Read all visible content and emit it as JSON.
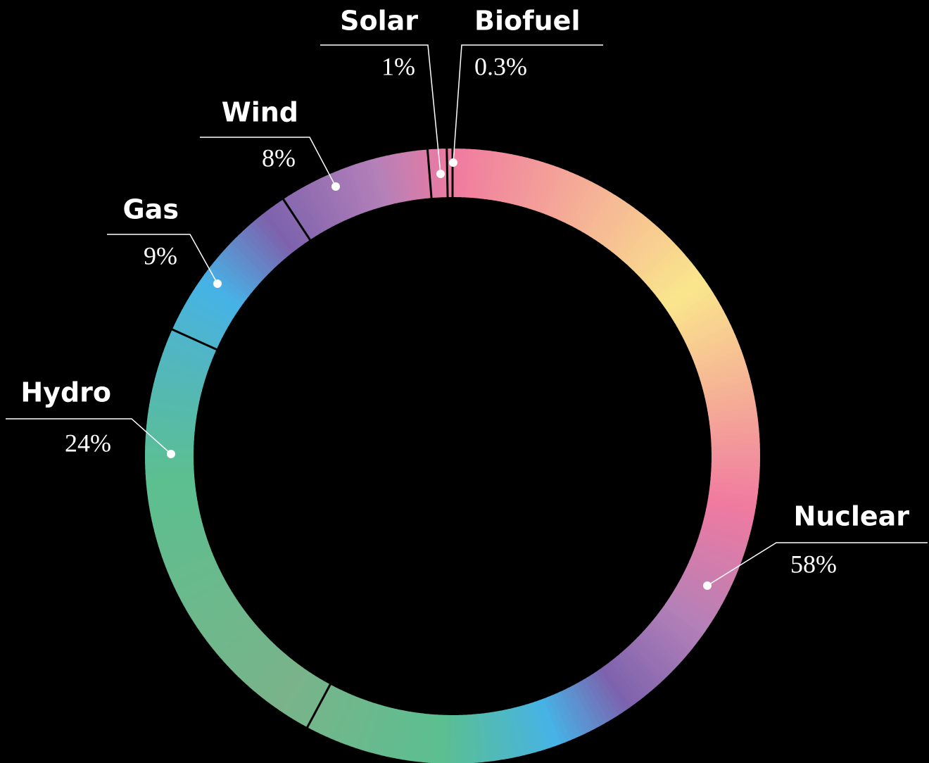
{
  "chart_data": {
    "type": "donut",
    "categories": [
      "Nuclear",
      "Hydro",
      "Gas",
      "Wind",
      "Solar",
      "Biofuel"
    ],
    "values": [
      58,
      24,
      9,
      8,
      1,
      0.3
    ],
    "value_labels": [
      "58%",
      "24%",
      "9%",
      "8%",
      "1%",
      "0.3%"
    ]
  }
}
